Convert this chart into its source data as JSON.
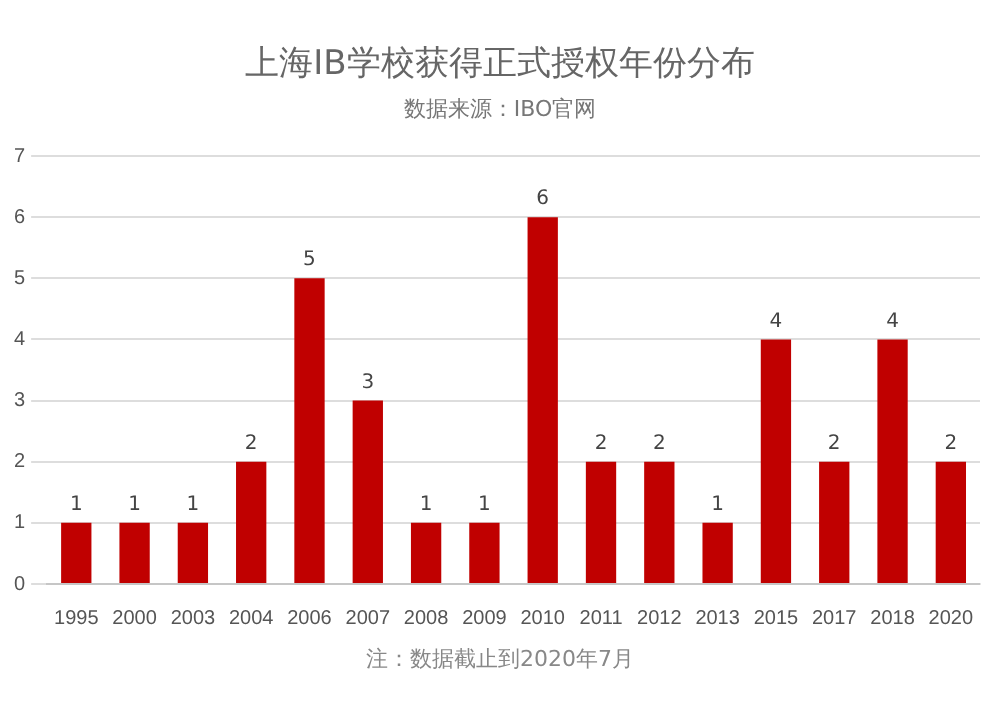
{
  "chart_data": {
    "type": "bar",
    "title": "上海IB学校获得正式授权年份分布",
    "subtitle": "数据来源：IBO官网",
    "categories": [
      "1995",
      "2000",
      "2003",
      "2004",
      "2006",
      "2007",
      "2008",
      "2009",
      "2010",
      "2011",
      "2012",
      "2013",
      "2015",
      "2017",
      "2018",
      "2020"
    ],
    "values": [
      1,
      1,
      1,
      2,
      5,
      3,
      1,
      1,
      6,
      2,
      2,
      1,
      4,
      2,
      4,
      2
    ],
    "color": "#c00000",
    "ylim": [
      0,
      7
    ],
    "yticks": [
      0,
      1,
      2,
      3,
      4,
      5,
      6,
      7
    ],
    "grid": "y",
    "data_labels": true,
    "annotations": [
      "注：数据截止到2020年7月"
    ]
  }
}
